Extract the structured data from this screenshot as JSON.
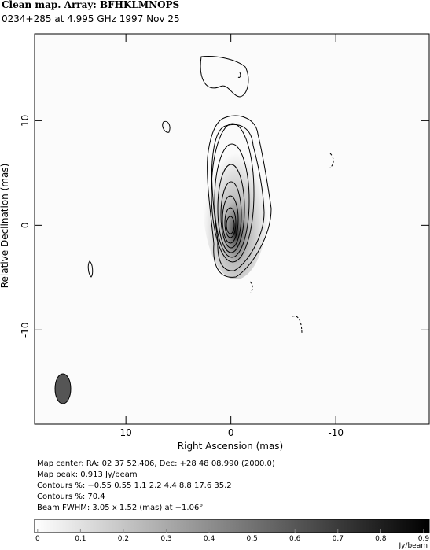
{
  "chart_data": {
    "type": "contour",
    "title": "Clean map.  Array: BFHKLMNOPS",
    "subtitle": "0234+285 at 4.995 GHz 1997 Nov 25",
    "x_label": "Right Ascension  (mas)",
    "y_label": "Relative Declination  (mas)",
    "xlim": [
      18.7,
      -18.9
    ],
    "xticks": [
      10,
      0,
      -10
    ],
    "ylim": [
      -19,
      18.3
    ],
    "yticks": [
      10,
      0,
      -10
    ],
    "notes": [
      "Map center:  RA: 02 37 52.406,  Dec: +28 48 08.990 (2000.0)",
      "Map peak: 0.913 Jy/beam",
      "Contours %: −0.55 0.55 1.1 2.2 4.4 8.8 17.6 35.2",
      "Contours %: 70.4",
      "Beam FWHM: 3.05 x 1.52 (mas) at −1.06°"
    ],
    "colorbar": {
      "lim": [
        -0.007,
        0.913
      ],
      "ticks": [
        0,
        0.1,
        0.2,
        0.3,
        0.4,
        0.5,
        0.6,
        0.7,
        0.8,
        0.9
      ],
      "label": "Jy/beam"
    }
  }
}
